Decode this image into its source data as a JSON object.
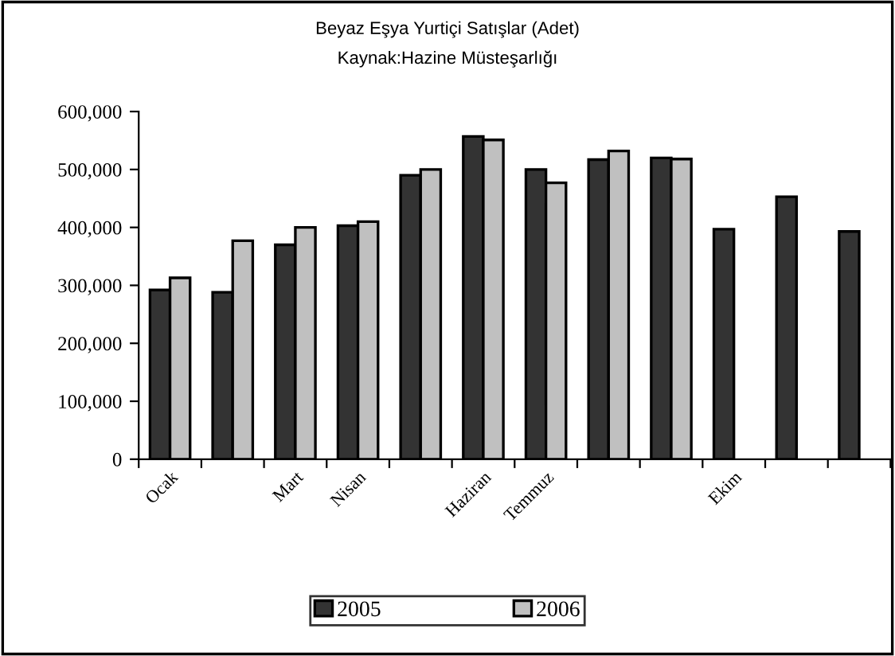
{
  "chart_data": {
    "type": "bar",
    "title": "Beyaz Eşya Yurtiçi Satışlar (Adet)",
    "subtitle": "Kaynak:Hazine Müsteşarlığı",
    "categories": [
      "Ocak",
      null,
      "Mart",
      "Nisan",
      null,
      "Haziran",
      "Temmuz",
      null,
      null,
      "Ekim",
      null,
      null
    ],
    "series": [
      {
        "name": "2005",
        "color": "#333333",
        "values": [
          292000,
          288000,
          370000,
          403000,
          490000,
          557000,
          500000,
          517000,
          520000,
          397000,
          453000,
          393000
        ]
      },
      {
        "name": "2006",
        "color": "#c0c0c0",
        "values": [
          313000,
          377000,
          400000,
          410000,
          500000,
          551000,
          477000,
          532000,
          518000,
          null,
          null,
          null
        ]
      }
    ],
    "ylim": [
      0,
      600000
    ],
    "yticks": [
      {
        "value": 0,
        "label": "0"
      },
      {
        "value": 100000,
        "label": "100,000"
      },
      {
        "value": 200000,
        "label": "200,000"
      },
      {
        "value": 300000,
        "label": "300,000"
      },
      {
        "value": 400000,
        "label": "400,000"
      },
      {
        "value": 500000,
        "label": "500,000"
      },
      {
        "value": 600000,
        "label": "600,000"
      }
    ],
    "grid": false,
    "legend": "bottom"
  }
}
